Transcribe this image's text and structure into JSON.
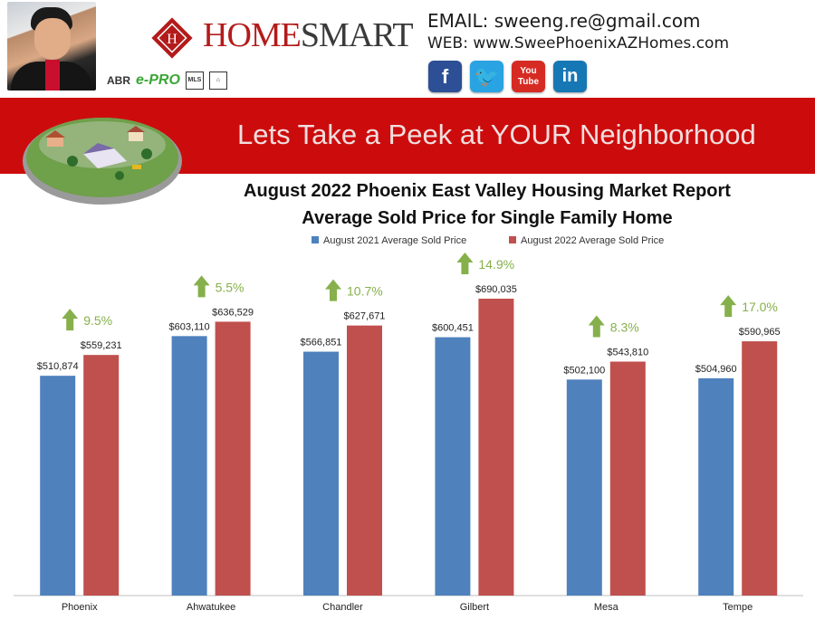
{
  "header": {
    "logo_brand": "HOMESMART",
    "logo_part1": "HOME",
    "logo_part2": "SMART",
    "badges": [
      "ABR",
      "e-PRO",
      "MLS"
    ],
    "email_line": "EMAIL: sweeng.re@gmail.com",
    "web_line": "WEB: www.SweePhoenixAZHomes.com",
    "social": [
      {
        "name": "facebook",
        "glyph": "f"
      },
      {
        "name": "twitter",
        "glyph": "t"
      },
      {
        "name": "youtube",
        "glyph": "You Tube"
      },
      {
        "name": "linkedin",
        "glyph": "in"
      }
    ]
  },
  "banner": {
    "text": "Lets Take a Peek at YOUR Neighborhood"
  },
  "colors": {
    "series_2021": "#4f81bd",
    "series_2022": "#c0504d",
    "banner": "#cc0c0c",
    "arrow": "#86b04b"
  },
  "chart_data": {
    "type": "bar",
    "title": "August 2022 Phoenix East Valley Housing Market Report",
    "subtitle": "Average Sold Price for Single Family Home",
    "legend_position": "top",
    "categories": [
      "Phoenix",
      "Ahwatukee",
      "Chandler",
      "Gilbert",
      "Mesa",
      "Tempe"
    ],
    "series": [
      {
        "name": "August 2021 Average Sold Price",
        "values": [
          510874,
          603110,
          566851,
          600451,
          502100,
          504960
        ]
      },
      {
        "name": "August 2022 Average Sold Price",
        "values": [
          559231,
          636529,
          627671,
          690035,
          543810,
          590965
        ]
      }
    ],
    "value_labels": [
      [
        "$510,874",
        "$603,110",
        "$566,851",
        "$600,451",
        "$502,100",
        "$504,960"
      ],
      [
        "$559,231",
        "$636,529",
        "$627,671",
        "$690,035",
        "$543,810",
        "$590,965"
      ]
    ],
    "changes": [
      "9.5%",
      "5.5%",
      "10.7%",
      "14.9%",
      "8.3%",
      "17.0%"
    ],
    "change_direction": [
      "up",
      "up",
      "up",
      "up",
      "up",
      "up"
    ],
    "ylim": [
      0,
      690035
    ],
    "grid": false
  }
}
